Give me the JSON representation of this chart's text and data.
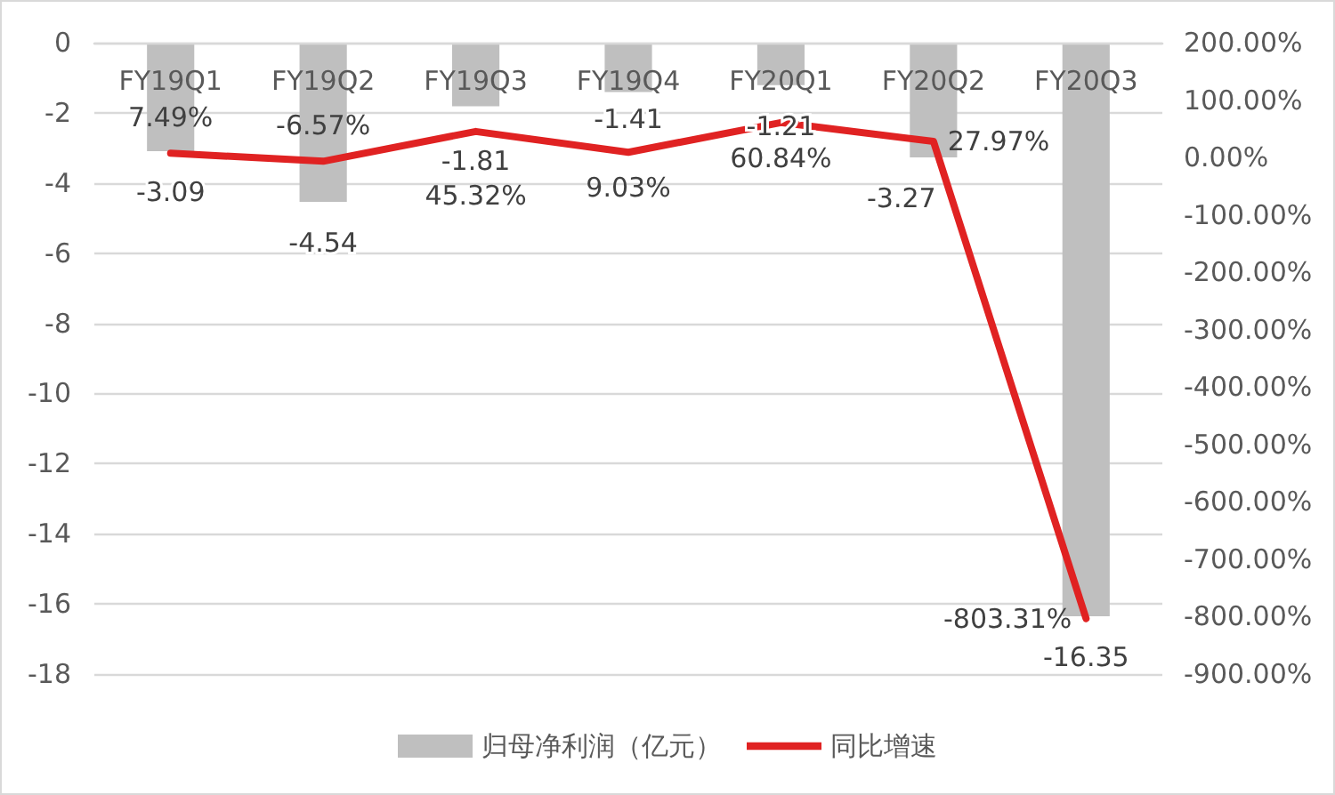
{
  "chart_data": {
    "type": "bar",
    "categories": [
      "FY19Q1",
      "FY19Q2",
      "FY19Q3",
      "FY19Q4",
      "FY20Q1",
      "FY20Q2",
      "FY20Q3"
    ],
    "series": [
      {
        "name": "归母净利润（亿元）",
        "color": "#bfbfbf",
        "values": [
          -3.09,
          -4.54,
          -1.81,
          -1.41,
          -1.21,
          -3.27,
          -16.35
        ],
        "value_labels": [
          "-3.09",
          "-4.54",
          "-1.81",
          "-1.41",
          "-1.21",
          "-3.27",
          "-16.35"
        ]
      },
      {
        "name": "同比增速",
        "type": "line",
        "axis": "y2",
        "color": "#e02222",
        "values": [
          7.49,
          -6.57,
          45.32,
          9.03,
          60.84,
          27.97,
          -803.31
        ],
        "value_labels": [
          "7.49%",
          "-6.57%",
          "45.32%",
          "9.03%",
          "60.84%",
          "27.97%",
          "-803.31%"
        ]
      }
    ],
    "ylim": [
      -18,
      0
    ],
    "yticks": [
      0,
      -2,
      -4,
      -6,
      -8,
      -10,
      -12,
      -14,
      -16,
      -18
    ],
    "y2lim": [
      -900,
      200
    ],
    "y2ticks": [
      {
        "value": 200,
        "label": "200.00%"
      },
      {
        "value": 100,
        "label": "100.00%"
      },
      {
        "value": 0,
        "label": "0.00%"
      },
      {
        "value": -100,
        "label": "-100.00%"
      },
      {
        "value": -200,
        "label": "-200.00%"
      },
      {
        "value": -300,
        "label": "-300.00%"
      },
      {
        "value": -400,
        "label": "-400.00%"
      },
      {
        "value": -500,
        "label": "-500.00%"
      },
      {
        "value": -600,
        "label": "-600.00%"
      },
      {
        "value": -700,
        "label": "-700.00%"
      },
      {
        "value": -800,
        "label": "-800.00%"
      },
      {
        "value": -900,
        "label": "-900.00%"
      }
    ],
    "grid": "y",
    "legend": "bottom",
    "marker": "none"
  }
}
